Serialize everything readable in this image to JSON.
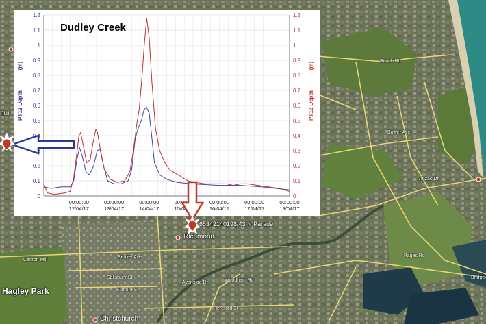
{
  "map": {
    "places": {
      "hagley_park": "Hagley Park",
      "richmond": "Richmond",
      "christchurch": "Christchurch",
      "site_label": "65342140198/43 N Parade",
      "left_edge": "nui"
    },
    "roads": [
      "Beach Rd",
      "Bealey Ave",
      "Salisbury St",
      "Kilmore St",
      "Avonside Dr",
      "Woodham Rd",
      "Hereford St",
      "Carlton Mill",
      "Fitzgerald Ave",
      "Stanmore Rd",
      "Pages Rd",
      "Bridge",
      "Bower Ave",
      "Anzac Dr"
    ],
    "colors": {
      "marker": "#c0392b",
      "road": "#e8d77a",
      "left_arrow": "#2a3a9a",
      "down_arrow": "#c0392b"
    },
    "icons": [
      "map-pin-icon",
      "left-arrow-icon",
      "down-arrow-icon",
      "star-burst-icon"
    ]
  },
  "chart_data": {
    "type": "line",
    "title": "Dudley Creek",
    "ylabel_left": "PT12 Depth",
    "ylabel_left_unit": "(m)",
    "ylabel_right": "PT12 Depth",
    "ylabel_right_unit": "(m)",
    "ylim": [
      0,
      1.2
    ],
    "yticks": [
      "0",
      "0.1",
      "0.2",
      "0.3",
      "0.4",
      "0.5",
      "0.6",
      "0.7",
      "0.8",
      "0.9",
      "1",
      "1.1",
      "1.2"
    ],
    "xlim": [
      0,
      7
    ],
    "xticks": [
      {
        "x": 1,
        "time": "00:00:00",
        "date": "12/04/17"
      },
      {
        "x": 2,
        "time": "00:00:00",
        "date": "13/04/17"
      },
      {
        "x": 3,
        "time": "00:00:00",
        "date": "14/04/17"
      },
      {
        "x": 4,
        "time": "00:00:00",
        "date": "15/04/17"
      },
      {
        "x": 5,
        "time": "00:00:00",
        "date": "16/04/17"
      },
      {
        "x": 6,
        "time": "00:00:00",
        "date": "17/04/17"
      },
      {
        "x": 7,
        "time": "00:00:00",
        "date": "18/04/17"
      }
    ],
    "series": [
      {
        "color": "#4040a8",
        "points": [
          [
            0,
            0.06
          ],
          [
            0.2,
            0.05
          ],
          [
            0.5,
            0.06
          ],
          [
            0.75,
            0.06
          ],
          [
            0.85,
            0.1
          ],
          [
            0.95,
            0.25
          ],
          [
            1.02,
            0.32
          ],
          [
            1.1,
            0.26
          ],
          [
            1.2,
            0.16
          ],
          [
            1.3,
            0.14
          ],
          [
            1.42,
            0.2
          ],
          [
            1.52,
            0.3
          ],
          [
            1.6,
            0.31
          ],
          [
            1.7,
            0.2
          ],
          [
            1.82,
            0.1
          ],
          [
            2.0,
            0.08
          ],
          [
            2.2,
            0.08
          ],
          [
            2.4,
            0.1
          ],
          [
            2.5,
            0.17
          ],
          [
            2.6,
            0.37
          ],
          [
            2.65,
            0.42
          ],
          [
            2.72,
            0.47
          ],
          [
            2.78,
            0.5
          ],
          [
            2.85,
            0.57
          ],
          [
            2.92,
            0.59
          ],
          [
            3.0,
            0.55
          ],
          [
            3.05,
            0.45
          ],
          [
            3.15,
            0.22
          ],
          [
            3.3,
            0.14
          ],
          [
            3.5,
            0.11
          ],
          [
            3.8,
            0.09
          ],
          [
            4.2,
            0.08
          ],
          [
            5.0,
            0.07
          ],
          [
            5.6,
            0.07
          ],
          [
            6.2,
            0.06
          ],
          [
            6.6,
            0.05
          ],
          [
            7.0,
            0.04
          ]
        ]
      },
      {
        "color": "#c03030",
        "points": [
          [
            0,
            0.08
          ],
          [
            0.1,
            0.02
          ],
          [
            0.3,
            0.01
          ],
          [
            0.6,
            0.02
          ],
          [
            0.75,
            0.03
          ],
          [
            0.85,
            0.12
          ],
          [
            0.95,
            0.3
          ],
          [
            1.0,
            0.4
          ],
          [
            1.05,
            0.42
          ],
          [
            1.12,
            0.34
          ],
          [
            1.22,
            0.22
          ],
          [
            1.32,
            0.24
          ],
          [
            1.4,
            0.35
          ],
          [
            1.48,
            0.44
          ],
          [
            1.52,
            0.43
          ],
          [
            1.6,
            0.32
          ],
          [
            1.72,
            0.18
          ],
          [
            1.9,
            0.11
          ],
          [
            2.1,
            0.09
          ],
          [
            2.3,
            0.1
          ],
          [
            2.45,
            0.16
          ],
          [
            2.55,
            0.3
          ],
          [
            2.65,
            0.48
          ],
          [
            2.72,
            0.58
          ],
          [
            2.8,
            0.8
          ],
          [
            2.86,
            1.0
          ],
          [
            2.93,
            1.18
          ],
          [
            3.0,
            1.05
          ],
          [
            3.08,
            0.75
          ],
          [
            3.18,
            0.45
          ],
          [
            3.3,
            0.3
          ],
          [
            3.45,
            0.22
          ],
          [
            3.6,
            0.17
          ],
          [
            3.9,
            0.13
          ],
          [
            4.1,
            0.1
          ],
          [
            4.3,
            0.09
          ],
          [
            4.6,
            0.08
          ],
          [
            5.0,
            0.08
          ],
          [
            5.2,
            0.08
          ],
          [
            5.4,
            0.07
          ],
          [
            5.6,
            0.08
          ],
          [
            5.8,
            0.08
          ],
          [
            6.1,
            0.07
          ],
          [
            6.4,
            0.06
          ],
          [
            6.7,
            0.05
          ],
          [
            7.0,
            0.03
          ]
        ]
      }
    ],
    "grid": true,
    "gridlines_every": 0.1
  }
}
